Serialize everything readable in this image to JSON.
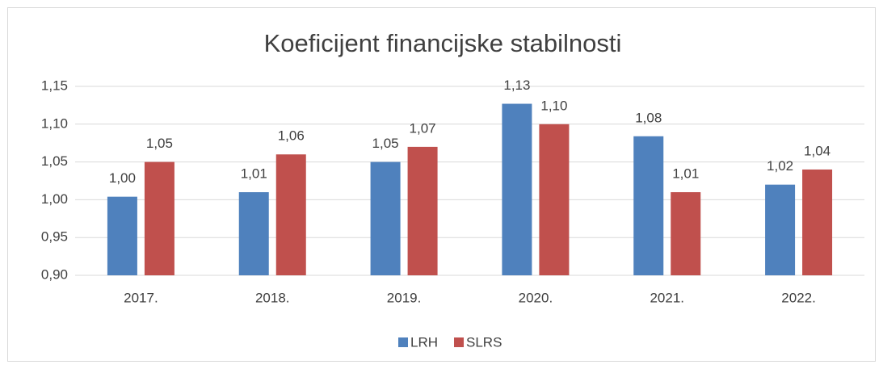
{
  "chart_data": {
    "type": "bar",
    "title": "Koeficijent financijske stabilnosti",
    "categories": [
      "2017.",
      "2018.",
      "2019.",
      "2020.",
      "2021.",
      "2022."
    ],
    "series": [
      {
        "name": "LRH",
        "color": "#4f81bd",
        "values": [
          1.004,
          1.01,
          1.05,
          1.127,
          1.084,
          1.02
        ],
        "value_labels": [
          "1,00",
          "1,01",
          "1,05",
          "1,13",
          "1,08",
          "1,02"
        ]
      },
      {
        "name": "SLRS",
        "color": "#c0504d",
        "values": [
          1.05,
          1.06,
          1.07,
          1.1,
          1.01,
          1.04
        ],
        "value_labels": [
          "1,05",
          "1,06",
          "1,07",
          "1,10",
          "1,01",
          "1,04"
        ]
      }
    ],
    "ylim": [
      0.9,
      1.15
    ],
    "yticks": [
      {
        "value": 0.9,
        "label": "0,90"
      },
      {
        "value": 0.95,
        "label": "0,95"
      },
      {
        "value": 1.0,
        "label": "1,00"
      },
      {
        "value": 1.05,
        "label": "1,05"
      },
      {
        "value": 1.1,
        "label": "1,10"
      },
      {
        "value": 1.15,
        "label": "1,15"
      }
    ],
    "grid": true,
    "legend": "bottom"
  }
}
